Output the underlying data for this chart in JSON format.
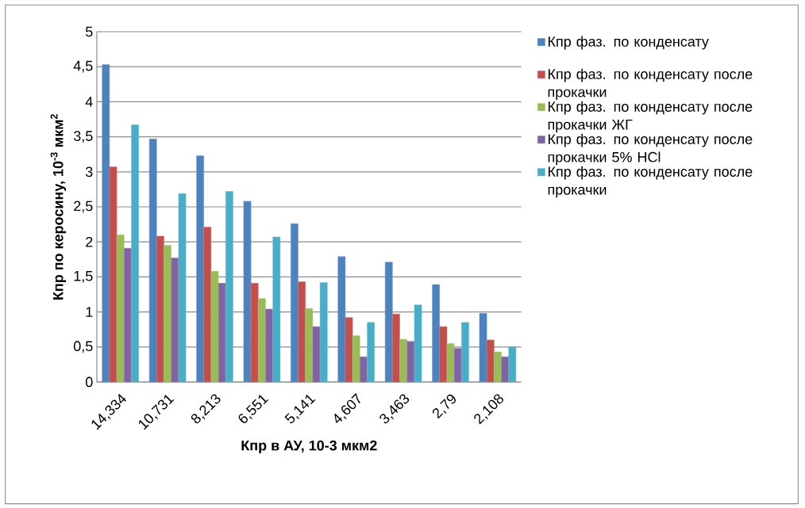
{
  "chart_data": {
    "type": "bar",
    "xlabel": "Кпр в АУ, 10-3 мкм2",
    "ylabel": "Кпр по керосину, 10$^{-3}$ мкм$^{2}$",
    "categories": [
      "14,334",
      "10,731",
      "8,213",
      "6,551",
      "5,141",
      "4,607",
      "3,463",
      "2,79",
      "2,108"
    ],
    "series": [
      {
        "name": "Кпр фаз. по конденсату",
        "color": "#4f81bd",
        "values": [
          4.53,
          3.47,
          3.23,
          2.58,
          2.26,
          1.79,
          1.71,
          1.39,
          0.98
        ]
      },
      {
        "name": "Кпр фаз. по конденсату после прокачки",
        "color": "#c0504d",
        "values": [
          3.07,
          2.08,
          2.21,
          1.41,
          1.43,
          0.92,
          0.97,
          0.79,
          0.6
        ]
      },
      {
        "name": "Кпр фаз. по конденсату после прокачки ЖГ",
        "color": "#9bbb59",
        "values": [
          2.1,
          1.95,
          1.58,
          1.19,
          1.05,
          0.66,
          0.61,
          0.55,
          0.43
        ]
      },
      {
        "name": "Кпр фаз. по конденсату после прокачки 5% HCl",
        "color": "#8064a2",
        "values": [
          1.91,
          1.77,
          1.41,
          1.04,
          0.79,
          0.36,
          0.58,
          0.48,
          0.36
        ]
      },
      {
        "name": "Кпр фаз. по конденсату после прокачки",
        "color": "#4bacc6",
        "values": [
          3.67,
          2.69,
          2.72,
          2.07,
          1.42,
          0.85,
          1.1,
          0.85,
          0.5
        ]
      }
    ],
    "ylim": [
      0,
      5
    ],
    "yticks": [
      0,
      {
        "value": 0.5,
        "label": "0,5"
      },
      1,
      {
        "value": 1.5,
        "label": "1,5"
      },
      2,
      {
        "value": 2.5,
        "label": "2,5"
      },
      3,
      {
        "value": 3.5,
        "label": "3,5"
      },
      4,
      {
        "value": 4.5,
        "label": "4,5"
      },
      5
    ],
    "grid": "y",
    "legend": "right"
  }
}
